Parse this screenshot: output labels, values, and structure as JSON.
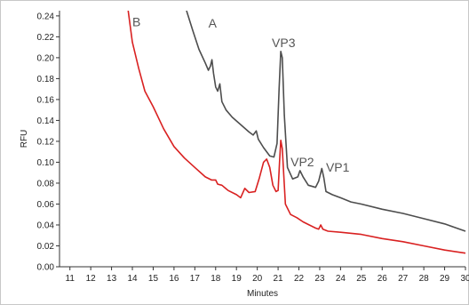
{
  "chart_data": {
    "type": "line",
    "xlabel": "Minutes",
    "ylabel": "RFU",
    "xlim": [
      10.5,
      30
    ],
    "ylim": [
      0,
      0.245
    ],
    "x_ticks": [
      "11",
      "12",
      "13",
      "14",
      "15",
      "16",
      "17",
      "18",
      "19",
      "20",
      "21",
      "22",
      "23",
      "24",
      "25",
      "26",
      "27",
      "28",
      "29",
      "30"
    ],
    "y_ticks": [
      "0.00",
      "0.02",
      "0.04",
      "0.06",
      "0.08",
      "0.10",
      "0.12",
      "0.14",
      "0.16",
      "0.18",
      "0.20",
      "0.22",
      "0.24"
    ],
    "series": [
      {
        "name": "A",
        "color": "#4d4d4d",
        "points": [
          [
            16.6,
            0.245
          ],
          [
            16.9,
            0.226
          ],
          [
            17.2,
            0.208
          ],
          [
            17.5,
            0.195
          ],
          [
            17.65,
            0.188
          ],
          [
            17.75,
            0.192
          ],
          [
            17.82,
            0.198
          ],
          [
            17.9,
            0.185
          ],
          [
            18.0,
            0.172
          ],
          [
            18.1,
            0.168
          ],
          [
            18.2,
            0.175
          ],
          [
            18.3,
            0.158
          ],
          [
            18.5,
            0.15
          ],
          [
            18.8,
            0.143
          ],
          [
            19.2,
            0.136
          ],
          [
            19.6,
            0.129
          ],
          [
            19.8,
            0.126
          ],
          [
            19.95,
            0.13
          ],
          [
            20.05,
            0.122
          ],
          [
            20.3,
            0.114
          ],
          [
            20.6,
            0.106
          ],
          [
            20.8,
            0.105
          ],
          [
            20.95,
            0.118
          ],
          [
            21.05,
            0.17
          ],
          [
            21.13,
            0.206
          ],
          [
            21.2,
            0.2
          ],
          [
            21.3,
            0.145
          ],
          [
            21.45,
            0.095
          ],
          [
            21.7,
            0.084
          ],
          [
            21.95,
            0.086
          ],
          [
            22.05,
            0.092
          ],
          [
            22.2,
            0.086
          ],
          [
            22.45,
            0.078
          ],
          [
            22.8,
            0.076
          ],
          [
            22.95,
            0.082
          ],
          [
            23.1,
            0.094
          ],
          [
            23.2,
            0.085
          ],
          [
            23.3,
            0.072
          ],
          [
            23.6,
            0.069
          ],
          [
            24.0,
            0.066
          ],
          [
            24.5,
            0.062
          ],
          [
            25.0,
            0.06
          ],
          [
            26.0,
            0.055
          ],
          [
            27.0,
            0.051
          ],
          [
            28.0,
            0.046
          ],
          [
            29.0,
            0.041
          ],
          [
            30.0,
            0.034
          ]
        ]
      },
      {
        "name": "B",
        "color": "#d92121",
        "points": [
          [
            13.8,
            0.245
          ],
          [
            14.0,
            0.215
          ],
          [
            14.3,
            0.19
          ],
          [
            14.6,
            0.168
          ],
          [
            15.0,
            0.153
          ],
          [
            15.5,
            0.132
          ],
          [
            16.0,
            0.115
          ],
          [
            16.5,
            0.104
          ],
          [
            17.0,
            0.095
          ],
          [
            17.5,
            0.086
          ],
          [
            17.8,
            0.083
          ],
          [
            18.0,
            0.083
          ],
          [
            18.1,
            0.079
          ],
          [
            18.3,
            0.078
          ],
          [
            18.6,
            0.073
          ],
          [
            19.0,
            0.069
          ],
          [
            19.2,
            0.066
          ],
          [
            19.4,
            0.075
          ],
          [
            19.6,
            0.071
          ],
          [
            19.9,
            0.072
          ],
          [
            20.1,
            0.085
          ],
          [
            20.3,
            0.1
          ],
          [
            20.45,
            0.103
          ],
          [
            20.6,
            0.095
          ],
          [
            20.75,
            0.078
          ],
          [
            20.9,
            0.072
          ],
          [
            21.0,
            0.073
          ],
          [
            21.07,
            0.1
          ],
          [
            21.13,
            0.121
          ],
          [
            21.2,
            0.113
          ],
          [
            21.35,
            0.06
          ],
          [
            21.6,
            0.05
          ],
          [
            21.9,
            0.047
          ],
          [
            22.2,
            0.043
          ],
          [
            22.5,
            0.04
          ],
          [
            22.8,
            0.037
          ],
          [
            22.95,
            0.036
          ],
          [
            23.05,
            0.04
          ],
          [
            23.15,
            0.036
          ],
          [
            23.4,
            0.034
          ],
          [
            24.0,
            0.033
          ],
          [
            25.0,
            0.031
          ],
          [
            26.0,
            0.027
          ],
          [
            27.0,
            0.024
          ],
          [
            28.0,
            0.02
          ],
          [
            29.0,
            0.016
          ],
          [
            30.0,
            0.013
          ]
        ]
      }
    ],
    "annotations": [
      {
        "text": "A",
        "x": 17.65,
        "y": 0.229,
        "color": "#555555"
      },
      {
        "text": "B",
        "x": 14.0,
        "y": 0.23,
        "color": "#d92121"
      },
      {
        "text": "VP3",
        "x": 20.7,
        "y": 0.21,
        "color": "#555555"
      },
      {
        "text": "VP2",
        "x": 21.6,
        "y": 0.096,
        "color": "#555555"
      },
      {
        "text": "VP1",
        "x": 23.3,
        "y": 0.091,
        "color": "#555555"
      }
    ],
    "grid": false
  }
}
